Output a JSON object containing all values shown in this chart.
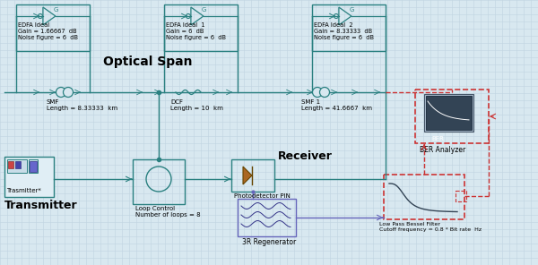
{
  "bg_color": "#d8e8f0",
  "grid_color": "#c0d4e0",
  "line_color": "#2a8080",
  "dashed_color": "#cc3333",
  "purple_color": "#6666bb",
  "fig_width": 6.0,
  "fig_height": 2.96,
  "edfa1_text": "EDFA Ideal\nGain = 1.66667  dB\nNoise figure = 6  dB",
  "edfa2_text": "EDFA Ideal  1\nGain = 6  dB\nNoise figure = 6  dB",
  "edfa3_text": "EDFA Ideal  2\nGain = 8.33333  dB\nNoise figure = 6  dB",
  "optical_span": "Optical Span",
  "smf_text": "SMF\nLength = 8.33333  km",
  "dcf_text": "DCF\nLength = 10  km",
  "smf1_text": "SMF 1\nLength = 41.6667  km",
  "transmitter_text": "Trasmitter*",
  "transmitter_label": "Transmitter",
  "loop_text": "Loop Control\nNumber of loops = 8",
  "photo_text": "Photodetector PIN",
  "receiver_text": "Receiver",
  "ber_text": "BER Analyzer",
  "lpf_text": "Low Pass Bessel Filter\nCutoff frequency = 0.8 * Bit rate  Hz",
  "regen_text": "3R Regenerator"
}
